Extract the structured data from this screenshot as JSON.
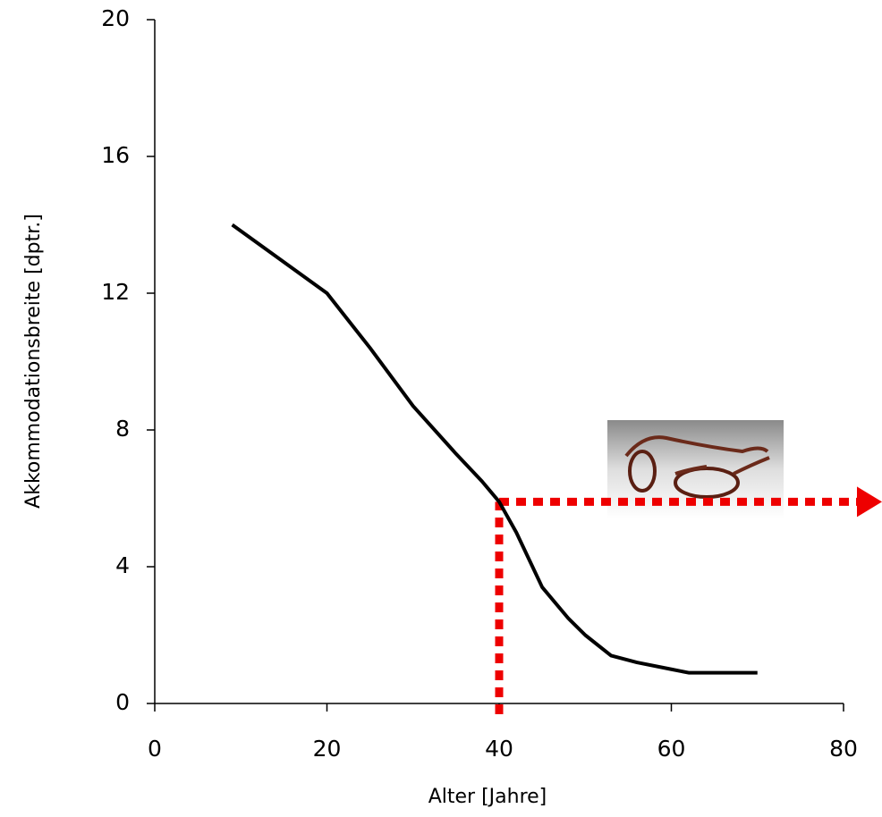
{
  "chart_data": {
    "type": "line",
    "xlabel": "Alter [Jahre]",
    "ylabel": "Akkommodationsbreite [dptr.]",
    "x": [
      9,
      20,
      25,
      30,
      35,
      38,
      40,
      42,
      45,
      48,
      50,
      53,
      56,
      60,
      62,
      70
    ],
    "series": [
      {
        "color": "#000000",
        "values": [
          14.0,
          12.0,
          10.4,
          8.7,
          7.3,
          6.5,
          5.9,
          5.0,
          3.4,
          2.5,
          2.0,
          1.4,
          1.2,
          1.0,
          0.9,
          0.9
        ]
      }
    ],
    "xlim": [
      0,
      80
    ],
    "xticks": [
      0,
      20,
      40,
      60,
      80
    ],
    "ylim": [
      0,
      20
    ],
    "yticks": [
      0,
      4,
      8,
      12,
      16,
      20
    ],
    "highlight": {
      "x": 40,
      "y": 5.9,
      "color": "#ee0000"
    }
  }
}
